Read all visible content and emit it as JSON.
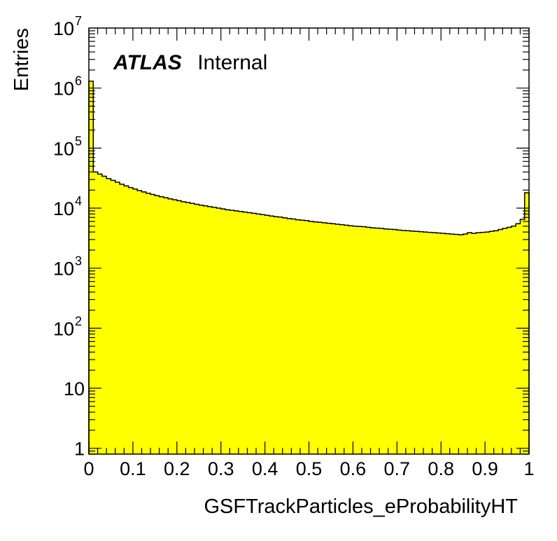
{
  "chart_data": {
    "type": "bar",
    "style": "histogram-step",
    "x_range": [
      0,
      1
    ],
    "y_range": [
      0.8,
      10000000
    ],
    "y_scale": "log",
    "xlabel": "GSFTrackParticles_eProbabilityHT",
    "ylabel": "Entries",
    "fill_color": "#ffff00",
    "line_color": "#000000",
    "grid": false,
    "legend": "none",
    "annotation": {
      "bold": "ATLAS",
      "normal": "Internal"
    },
    "x_ticks": [
      {
        "value": 0,
        "label": "0"
      },
      {
        "value": 0.1,
        "label": "0.1"
      },
      {
        "value": 0.2,
        "label": "0.2"
      },
      {
        "value": 0.3,
        "label": "0.3"
      },
      {
        "value": 0.4,
        "label": "0.4"
      },
      {
        "value": 0.5,
        "label": "0.5"
      },
      {
        "value": 0.6,
        "label": "0.6"
      },
      {
        "value": 0.7,
        "label": "0.7"
      },
      {
        "value": 0.8,
        "label": "0.8"
      },
      {
        "value": 0.9,
        "label": "0.9"
      },
      {
        "value": 1,
        "label": "1"
      }
    ],
    "y_ticks": [
      {
        "value": 1,
        "base": "1",
        "exp": ""
      },
      {
        "value": 10,
        "base": "10",
        "exp": ""
      },
      {
        "value": 100,
        "base": "10",
        "exp": "2"
      },
      {
        "value": 1000,
        "base": "10",
        "exp": "3"
      },
      {
        "value": 10000,
        "base": "10",
        "exp": "4"
      },
      {
        "value": 100000,
        "base": "10",
        "exp": "5"
      },
      {
        "value": 1000000,
        "base": "10",
        "exp": "6"
      },
      {
        "value": 10000000,
        "base": "10",
        "exp": "7"
      }
    ],
    "bins": [
      0,
      0.01,
      0.02,
      0.03,
      0.04,
      0.05,
      0.06,
      0.07,
      0.08,
      0.09,
      0.1,
      0.11,
      0.12,
      0.13,
      0.14,
      0.15,
      0.16,
      0.17,
      0.18,
      0.19,
      0.2,
      0.21,
      0.22,
      0.23,
      0.24,
      0.25,
      0.26,
      0.27,
      0.28,
      0.29,
      0.3,
      0.31,
      0.32,
      0.33,
      0.34,
      0.35,
      0.36,
      0.37,
      0.38,
      0.39,
      0.4,
      0.41,
      0.42,
      0.43,
      0.44,
      0.45,
      0.46,
      0.47,
      0.48,
      0.49,
      0.5,
      0.51,
      0.52,
      0.53,
      0.54,
      0.55,
      0.56,
      0.57,
      0.58,
      0.59,
      0.6,
      0.61,
      0.62,
      0.63,
      0.64,
      0.65,
      0.66,
      0.67,
      0.68,
      0.69,
      0.7,
      0.71,
      0.72,
      0.73,
      0.74,
      0.75,
      0.76,
      0.77,
      0.78,
      0.79,
      0.8,
      0.81,
      0.82,
      0.83,
      0.84,
      0.85,
      0.86,
      0.87,
      0.88,
      0.89,
      0.9,
      0.91,
      0.92,
      0.93,
      0.94,
      0.95,
      0.96,
      0.97,
      0.98,
      0.99
    ],
    "values": [
      1300000,
      40000,
      37000,
      34000,
      31000,
      29000,
      27000,
      25000,
      23500,
      22000,
      20800,
      19600,
      18600,
      17700,
      16900,
      16100,
      15500,
      14900,
      14300,
      13800,
      13300,
      12800,
      12400,
      12000,
      11600,
      11200,
      10900,
      10600,
      10300,
      10000,
      9700,
      9400,
      9200,
      9000,
      8800,
      8600,
      8400,
      8200,
      8000,
      7800,
      7600,
      7400,
      7200,
      7100,
      6900,
      6700,
      6600,
      6400,
      6300,
      6200,
      6000,
      5900,
      5800,
      5700,
      5600,
      5500,
      5400,
      5300,
      5200,
      5100,
      5000,
      4950,
      4900,
      4800,
      4700,
      4650,
      4600,
      4500,
      4450,
      4400,
      4300,
      4250,
      4200,
      4150,
      4100,
      4050,
      4000,
      3950,
      3900,
      3850,
      3800,
      3750,
      3700,
      3650,
      3600,
      3700,
      3900,
      3800,
      3900,
      3950,
      4000,
      4100,
      4200,
      4400,
      4600,
      4800,
      5000,
      5500,
      6500,
      18000
    ]
  }
}
